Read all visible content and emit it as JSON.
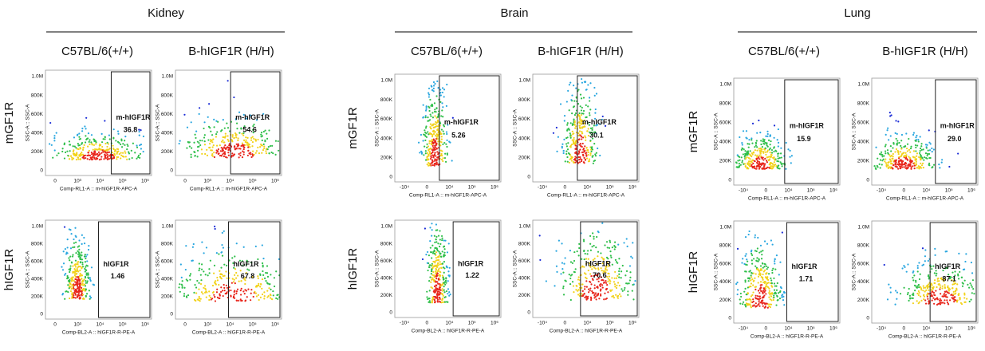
{
  "y_axis_label": "SSC-A :: SSC-A",
  "yticks": [
    "0",
    "200K",
    "400K",
    "600K",
    "800K",
    "1.0M"
  ],
  "panels": [
    {
      "tissue": "Kidney",
      "genotypes": [
        "C57BL/6(+/+)",
        "B-hIGF1R (H/H)"
      ],
      "xticks": [
        "0",
        "10³",
        "10⁴",
        "10⁵",
        "10⁶"
      ],
      "rows": [
        {
          "row_label": "mGF1R",
          "gate_label": "m-hIGF1R",
          "x_axis_label": "Comp-RL1-A :: m-hIGF1R-APC-A",
          "values": [
            "36.8",
            "54.6"
          ]
        },
        {
          "row_label": "hIGF1R",
          "gate_label": "hIGF1R",
          "x_axis_label": "Comp-BL2-A :: hIGF1R-R-PE-A",
          "values": [
            "1.46",
            "67.8"
          ]
        }
      ]
    },
    {
      "tissue": "Brain",
      "genotypes": [
        "C57BL/6(+/+)",
        "B-hIGF1R (H/H)"
      ],
      "xticks": [
        "-10⁴",
        "0",
        "10⁴",
        "10⁵",
        "10⁶"
      ],
      "rows": [
        {
          "row_label": "mGF1R",
          "gate_label": "m-hIGF1R",
          "x_axis_label": "Comp-RL1-A :: m-hIGF1R-APC-A",
          "values": [
            "5.26",
            "30.1"
          ]
        },
        {
          "row_label": "hIGF1R",
          "gate_label": "hIGF1R",
          "x_axis_label": "Comp-BL2-A :: hIGF1R-R-PE-A",
          "values": [
            "1.22",
            "70.6"
          ]
        }
      ]
    },
    {
      "tissue": "Lung",
      "genotypes": [
        "C57BL/6(+/+)",
        "B-hIGF1R (H/H)"
      ],
      "xticks": [
        "-10⁴",
        "0",
        "10⁴",
        "10⁵",
        "10⁶"
      ],
      "rows": [
        {
          "row_label": "mGF1R",
          "gate_label": "m-hIGF1R",
          "x_axis_label": "Comp-RL1-A :: m-hIGF1R-APC-A",
          "values": [
            "15.9",
            "29.0"
          ]
        },
        {
          "row_label": "hIGF1R",
          "gate_label": "hIGF1R",
          "x_axis_label": "Comp-BL2-A :: hIGF1R-R-PE-A",
          "values": [
            "1.71",
            "87.1"
          ]
        }
      ]
    }
  ]
}
